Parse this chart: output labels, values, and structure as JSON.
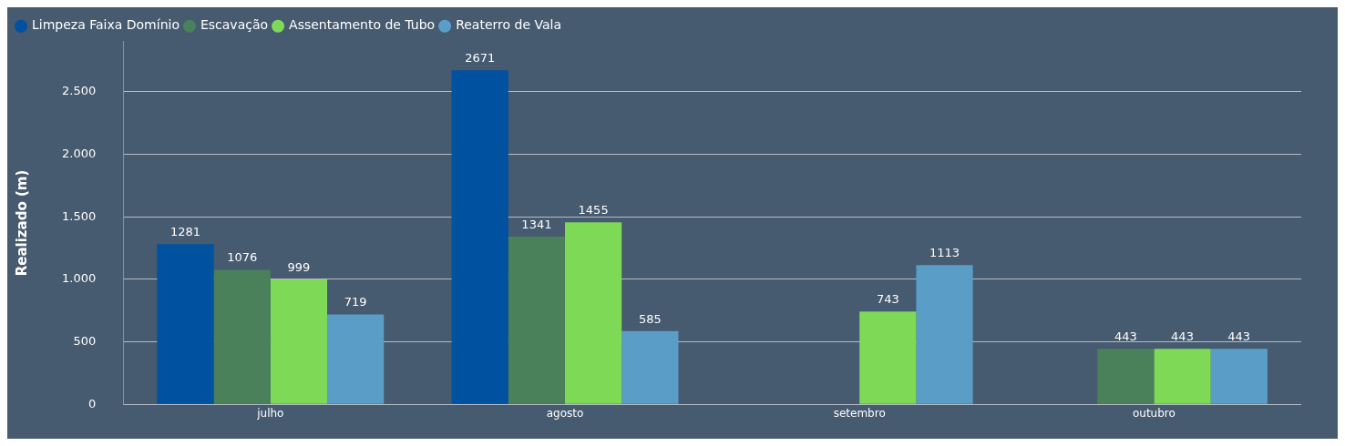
{
  "chart_data": {
    "type": "bar",
    "ylabel": "Realizado (m)",
    "categories": [
      "julho",
      "agosto",
      "setembro",
      "outubro"
    ],
    "series": [
      {
        "name": "Limpeza Faixa Domínio",
        "color": "#0051a0",
        "values": [
          1281,
          2671,
          null,
          null
        ]
      },
      {
        "name": "Escavação",
        "color": "#4a805a",
        "values": [
          1076,
          1341,
          null,
          443
        ]
      },
      {
        "name": "Assentamento de Tubo",
        "color": "#7ed957",
        "values": [
          999,
          1455,
          743,
          443
        ]
      },
      {
        "name": "Reaterro de Vala",
        "color": "#5a9ec8",
        "values": [
          719,
          585,
          1113,
          443
        ]
      }
    ],
    "ylim": [
      0,
      2900
    ],
    "yticks": [
      0,
      {
        "value": 500,
        "label": "500"
      },
      {
        "value": 1000,
        "label": "1.000"
      },
      {
        "value": 1500,
        "label": "1.500"
      },
      {
        "value": 2000,
        "label": "2.000"
      },
      {
        "value": 2500,
        "label": "2.500"
      }
    ],
    "grid": "y",
    "legend": "top left",
    "data_labels": true
  }
}
